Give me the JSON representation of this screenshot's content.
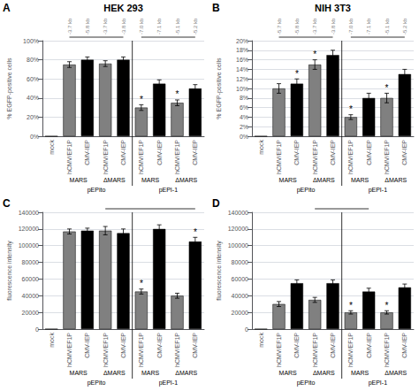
{
  "chart_data": [
    {
      "type": "bar",
      "title": "HEK 293",
      "label": "A",
      "ylabel": "% EGFP-positive cells",
      "ylim": [
        0,
        100
      ],
      "yticks": [
        {
          "value": 0,
          "label": "0%"
        },
        {
          "value": 20,
          "label": "20%"
        },
        {
          "value": 40,
          "label": "40%"
        },
        {
          "value": 60,
          "label": "60%"
        },
        {
          "value": 80,
          "label": "80%"
        },
        {
          "value": 100,
          "label": "100%"
        }
      ],
      "grid": true,
      "categories": [
        "mock",
        "hCMV/EF1P",
        "CMV-IEP",
        "hCMV/EF1P",
        "CMV-IEP",
        "hCMV/EF1P",
        "CMV-IEP",
        "hCMV/EF1P",
        "CMV-IEP"
      ],
      "values": [
        0,
        75,
        80,
        76,
        80,
        30,
        55,
        35,
        50
      ],
      "errors": [
        0,
        3,
        3,
        3,
        3,
        3,
        4,
        3,
        4
      ],
      "colors": [
        "#808080",
        "#808080",
        "#000000",
        "#808080",
        "#000000",
        "#808080",
        "#000000",
        "#808080",
        "#000000"
      ],
      "annotations": [
        null,
        "-3.7 kb",
        "-5.8 kb",
        "-3.7 kb",
        "-3.8 kb",
        "-7.0 kb",
        "-7.1 kb",
        "-5.1 kb",
        "-5.2 kb"
      ],
      "star_label": "*",
      "stars": [
        5,
        7
      ],
      "brackets": [
        [
          1,
          4
        ],
        [
          5,
          8
        ]
      ],
      "subgroups": [
        {
          "label": "MARS",
          "span": [
            1,
            2
          ]
        },
        {
          "label": "ΔMARS",
          "span": [
            3,
            4
          ]
        },
        {
          "label": "MARS",
          "span": [
            5,
            6
          ]
        },
        {
          "label": "ΔMARS",
          "span": [
            7,
            8
          ]
        }
      ],
      "groups": [
        {
          "label": "pEPito",
          "span": [
            1,
            4
          ]
        },
        {
          "label": "pEPI-1",
          "span": [
            5,
            8
          ]
        }
      ]
    },
    {
      "type": "bar",
      "title": "NIH 3T3",
      "label": "B",
      "ylabel": "% EGFP-positive cells",
      "ylim": [
        0,
        20
      ],
      "yticks": [
        {
          "value": 0,
          "label": "0%"
        },
        {
          "value": 2,
          "label": "2%"
        },
        {
          "value": 4,
          "label": "4%"
        },
        {
          "value": 6,
          "label": "6%"
        },
        {
          "value": 8,
          "label": "8%"
        },
        {
          "value": 10,
          "label": "10%"
        },
        {
          "value": 12,
          "label": "12%"
        },
        {
          "value": 14,
          "label": "14%"
        },
        {
          "value": 16,
          "label": "16%"
        },
        {
          "value": 18,
          "label": "18%"
        },
        {
          "value": 20,
          "label": "20%"
        }
      ],
      "grid": true,
      "categories": [
        "mock",
        "hCMV/EF1P",
        "CMV-IEP",
        "hCMV/EF1P",
        "CMV-IEP",
        "hCMV/EF1P",
        "CMV-IEP",
        "hCMV/EF1P",
        "CMV-IEP"
      ],
      "values": [
        0,
        10,
        11,
        15,
        17,
        4,
        8,
        8,
        13
      ],
      "errors": [
        0,
        1,
        1,
        1,
        1,
        0.5,
        1,
        1,
        1
      ],
      "colors": [
        "#808080",
        "#808080",
        "#000000",
        "#808080",
        "#000000",
        "#808080",
        "#000000",
        "#808080",
        "#000000"
      ],
      "annotations": [
        null,
        "-5.7 kb",
        "-5.8 kb",
        "-3.7 kb",
        "-3.8 kb",
        "-7.0 kb",
        "-7.1 kb",
        "-5.1 kb",
        "-5.2 kb"
      ],
      "star_label": "*",
      "stars": [
        2,
        3,
        5,
        7
      ],
      "brackets": [
        [
          1,
          4
        ],
        [
          5,
          8
        ]
      ],
      "subgroups": [
        {
          "label": "MARS",
          "span": [
            1,
            2
          ]
        },
        {
          "label": "ΔMARS",
          "span": [
            3,
            4
          ]
        },
        {
          "label": "MARS",
          "span": [
            5,
            6
          ]
        },
        {
          "label": "ΔMARS",
          "span": [
            7,
            8
          ]
        }
      ],
      "groups": [
        {
          "label": "pEPito",
          "span": [
            1,
            4
          ]
        },
        {
          "label": "pEPI-1",
          "span": [
            5,
            8
          ]
        }
      ]
    },
    {
      "type": "bar",
      "label": "C",
      "ylabel": "fluorescence intensity",
      "ylim": [
        0,
        140000
      ],
      "yticks": [
        0,
        20000,
        40000,
        60000,
        80000,
        100000,
        120000,
        140000
      ],
      "grid": true,
      "categories": [
        "mock",
        "hCMV/EF1P",
        "CMV-IEP",
        "hCMV/EF1P",
        "CMV-IEP",
        "hCMV/EF1P",
        "CMV-IEP",
        "hCMV/EF1P",
        "CMV-IEP"
      ],
      "values": [
        0,
        117000,
        118000,
        118000,
        115000,
        45000,
        120000,
        40000,
        105000
      ],
      "errors": [
        0,
        3000,
        3000,
        5000,
        5000,
        3000,
        5000,
        3000,
        5000
      ],
      "colors": [
        "#808080",
        "#808080",
        "#000000",
        "#808080",
        "#000000",
        "#808080",
        "#000000",
        "#808080",
        "#000000"
      ],
      "star_label": "*",
      "stars": [
        5,
        8
      ],
      "brackets": [
        [
          3,
          8
        ]
      ],
      "subgroups": [
        {
          "label": "MARS",
          "span": [
            1,
            2
          ]
        },
        {
          "label": "ΔMARS",
          "span": [
            3,
            4
          ]
        },
        {
          "label": "MARS",
          "span": [
            5,
            6
          ]
        },
        {
          "label": "ΔMARS",
          "span": [
            7,
            8
          ]
        }
      ],
      "groups": [
        {
          "label": "pEPito",
          "span": [
            1,
            4
          ]
        },
        {
          "label": "pEPI-1",
          "span": [
            5,
            8
          ]
        }
      ]
    },
    {
      "type": "bar",
      "label": "D",
      "ylabel": "fluorescence intensity",
      "ylim": [
        0,
        140000
      ],
      "yticks": [
        0,
        20000,
        40000,
        60000,
        80000,
        100000,
        120000,
        140000
      ],
      "grid": true,
      "categories": [
        "mock",
        "hCMV/EF1P",
        "CMV-IEP",
        "hCMV/EF1P",
        "CMV-IEP",
        "hCMV/EF1P",
        "CMV-IEP",
        "hCMV/EF1P",
        "CMV-IEP"
      ],
      "values": [
        0,
        30000,
        55000,
        35000,
        55000,
        20000,
        45000,
        20000,
        50000
      ],
      "errors": [
        0,
        3000,
        4000,
        3000,
        4000,
        2000,
        4000,
        2000,
        4000
      ],
      "colors": [
        "#808080",
        "#808080",
        "#000000",
        "#808080",
        "#000000",
        "#808080",
        "#000000",
        "#808080",
        "#000000"
      ],
      "star_label": "*",
      "stars": [
        5,
        7
      ],
      "brackets": [
        [
          3,
          6
        ]
      ],
      "subgroups": [
        {
          "label": "MARS",
          "span": [
            1,
            2
          ]
        },
        {
          "label": "ΔMARS",
          "span": [
            3,
            4
          ]
        },
        {
          "label": "MARS",
          "span": [
            5,
            6
          ]
        },
        {
          "label": "ΔMARS",
          "span": [
            7,
            8
          ]
        }
      ],
      "groups": [
        {
          "label": "pEPito",
          "span": [
            1,
            4
          ]
        },
        {
          "label": "pEPI-1",
          "span": [
            5,
            8
          ]
        }
      ]
    }
  ]
}
